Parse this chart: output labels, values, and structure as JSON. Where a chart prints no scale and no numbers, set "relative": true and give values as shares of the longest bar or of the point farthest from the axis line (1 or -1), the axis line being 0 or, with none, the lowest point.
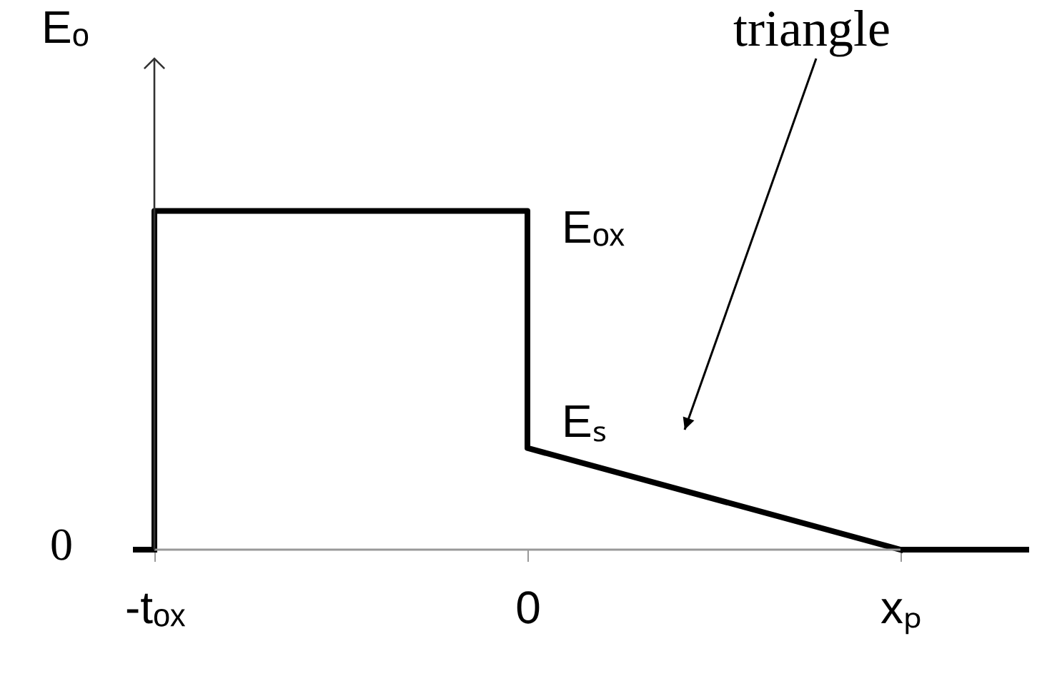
{
  "chart_data": {
    "type": "line",
    "relative": true,
    "ylabel": "Eₒ",
    "categories": [
      "-tₒₓ",
      "0",
      "xₚ"
    ],
    "series": [
      {
        "color": "#000000",
        "x": [
          "-tₒₓ",
          "-tₒₓ",
          "0",
          "0",
          "xₚ"
        ],
        "values": [
          0,
          1,
          1,
          0.3,
          0
        ]
      }
    ],
    "tick_labels": "x",
    "grid": false,
    "annotations": [
      {
        "text": "Eₒₓ",
        "x": "0",
        "y": 1
      },
      {
        "text": "Eₛ",
        "x": "0",
        "y": 0.3
      },
      "triangle",
      "0"
    ]
  }
}
